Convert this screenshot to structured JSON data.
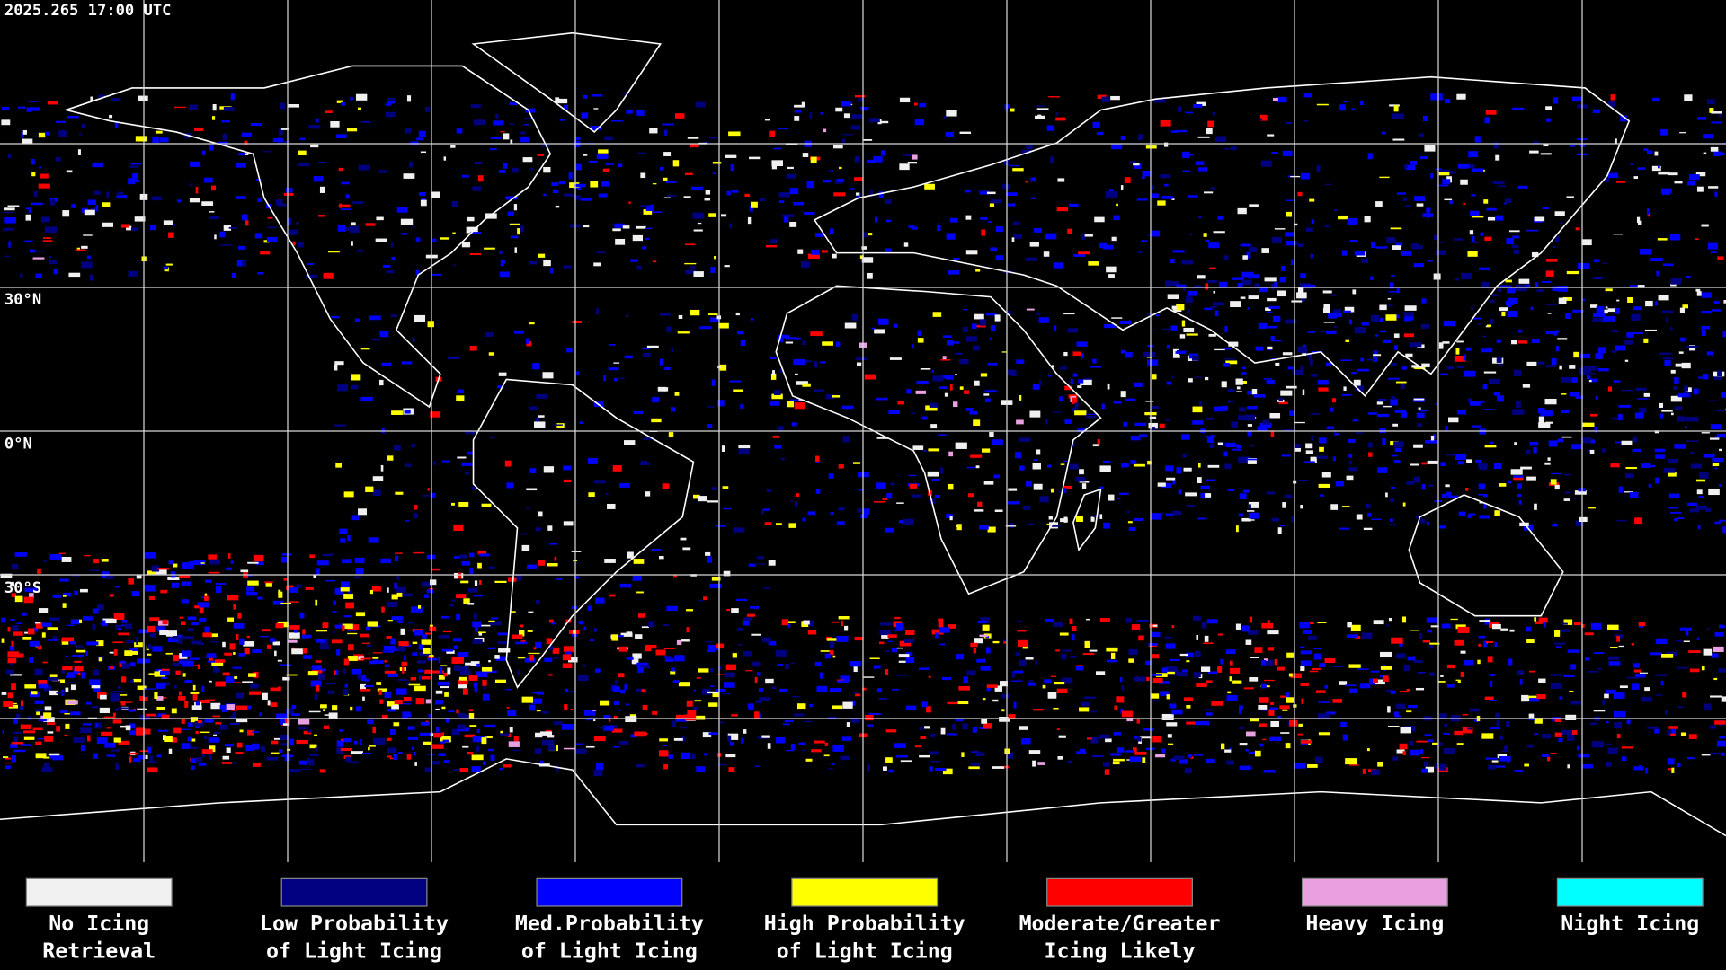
{
  "header": {
    "title": "2025.265 17:00 UTC"
  },
  "map": {
    "lat_labels": [
      "30°N",
      "0°N",
      "30°S"
    ]
  },
  "legend": {
    "items": [
      {
        "lines": [
          "No Icing",
          "Retrieval"
        ],
        "color": "#f0f0f0"
      },
      {
        "lines": [
          "Low Probability",
          "of Light Icing"
        ],
        "color": "#000080"
      },
      {
        "lines": [
          "Med.Probability",
          "of Light Icing"
        ],
        "color": "#0000ff"
      },
      {
        "lines": [
          "High Probability",
          "of Light Icing"
        ],
        "color": "#ffff00"
      },
      {
        "lines": [
          "Moderate/Greater",
          "Icing Likely"
        ],
        "color": "#ff0000"
      },
      {
        "lines": [
          "Heavy Icing"
        ],
        "color": "#e8a0e0"
      },
      {
        "lines": [
          "Night Icing"
        ],
        "color": "#00ffff"
      }
    ]
  }
}
